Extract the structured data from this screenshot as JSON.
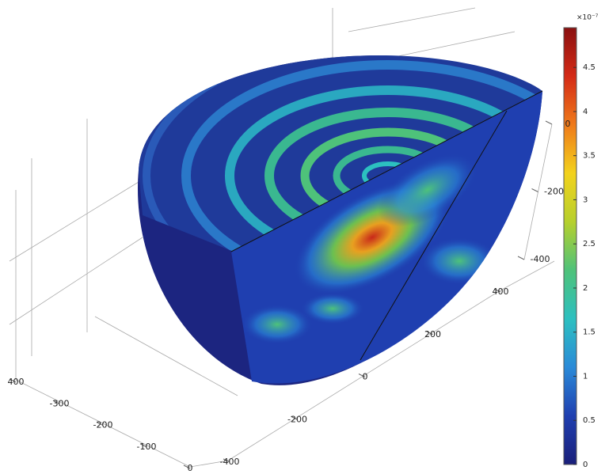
{
  "chart_data": {
    "type": "volume-slice",
    "colormap": [
      "#1a1f7a",
      "#1f3fb0",
      "#2a8ad8",
      "#2cc0c0",
      "#4ec27a",
      "#b6d02c",
      "#f3d21c",
      "#ef7a1a",
      "#d42a16",
      "#8a1010"
    ],
    "colorbar": {
      "label": "×10⁻⁷",
      "lim": [
        0,
        4.95
      ],
      "ticks": [
        0,
        0.5,
        1,
        1.5,
        2,
        2.5,
        3,
        3.5,
        4,
        4.5
      ]
    },
    "xlim": [
      -400,
      0
    ],
    "xticks": [
      {
        "value": -400,
        "label": "400"
      },
      -300,
      -200,
      -100,
      0
    ],
    "ylim": [
      -400,
      400
    ],
    "yticks": [
      -400,
      -200,
      0,
      200,
      400
    ],
    "zlim": [
      -400,
      0
    ],
    "zticks": [
      0,
      -200,
      -400
    ]
  }
}
